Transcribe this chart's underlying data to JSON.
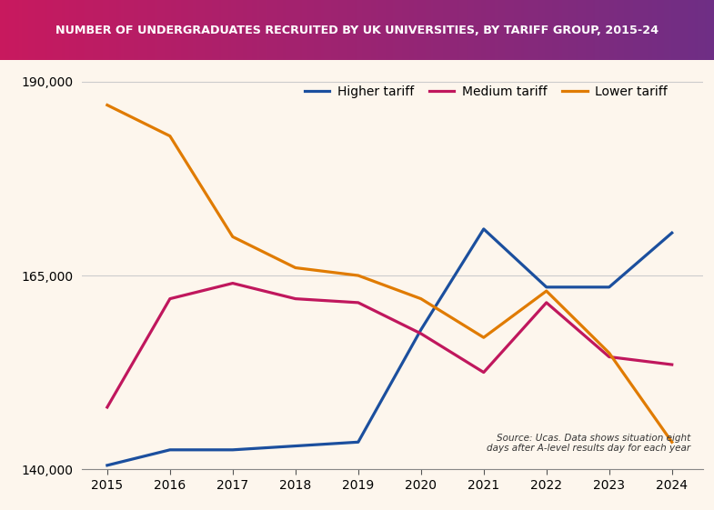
{
  "title": "NUMBER OF UNDERGRADUATES RECRUITED BY UK UNIVERSITIES, BY TARIFF GROUP, 2015-24",
  "years": [
    2015,
    2016,
    2017,
    2018,
    2019,
    2020,
    2021,
    2022,
    2023,
    2024
  ],
  "higher_tariff": [
    140500,
    142500,
    142500,
    143000,
    143500,
    158000,
    171000,
    163500,
    163500,
    170500
  ],
  "medium_tariff": [
    148000,
    162000,
    164000,
    162000,
    161500,
    157500,
    152500,
    161500,
    154500,
    153500
  ],
  "lower_tariff": [
    187000,
    183000,
    170000,
    166000,
    165000,
    162000,
    157000,
    163000,
    155000,
    143500
  ],
  "higher_color": "#1b4f9e",
  "medium_color": "#c0175d",
  "lower_color": "#e07b00",
  "ylim": [
    140000,
    192000
  ],
  "yticks": [
    140000,
    165000,
    190000
  ],
  "background_color": "#fdf6ed",
  "grid_color": "#cccccc",
  "source_text": "Source: Ucas. Data shows situation eight\ndays after A-level results day for each year",
  "line_width": 2.3,
  "title_color_left": "#c8195e",
  "title_color_right": "#6e2e85"
}
